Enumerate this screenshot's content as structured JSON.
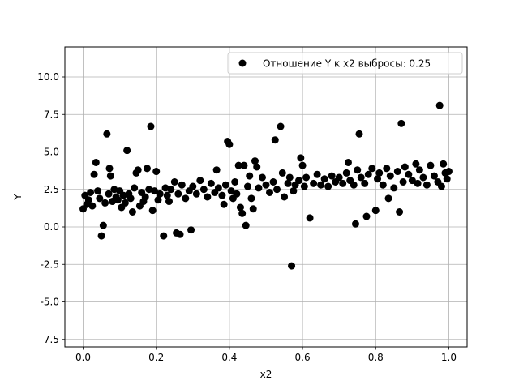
{
  "chart_data": {
    "type": "scatter",
    "xlabel": "x2",
    "ylabel": "Y",
    "xlim": [
      -0.05,
      1.05
    ],
    "ylim": [
      -8.0,
      12.0
    ],
    "x_ticks": [
      "0.0",
      "0.2",
      "0.4",
      "0.6",
      "0.8",
      "1.0"
    ],
    "y_ticks": [
      "-7.5",
      "-5.0",
      "-2.5",
      "0.0",
      "2.5",
      "5.0",
      "7.5",
      "10.0"
    ],
    "grid": true,
    "legend_position": "top-right",
    "series": [
      {
        "name": "Отношение Y к x2 выбросы: 0.25",
        "color": "#000000",
        "marker": "circle",
        "points": [
          [
            0.0,
            1.2
          ],
          [
            0.005,
            2.1
          ],
          [
            0.01,
            1.5
          ],
          [
            0.015,
            1.8
          ],
          [
            0.02,
            2.3
          ],
          [
            0.025,
            1.4
          ],
          [
            0.03,
            3.5
          ],
          [
            0.035,
            4.3
          ],
          [
            0.04,
            2.4
          ],
          [
            0.045,
            1.9
          ],
          [
            0.05,
            -0.6
          ],
          [
            0.055,
            0.1
          ],
          [
            0.06,
            1.6
          ],
          [
            0.065,
            6.2
          ],
          [
            0.07,
            2.2
          ],
          [
            0.072,
            3.9
          ],
          [
            0.075,
            3.4
          ],
          [
            0.08,
            1.7
          ],
          [
            0.085,
            2.5
          ],
          [
            0.09,
            2.0
          ],
          [
            0.095,
            1.8
          ],
          [
            0.1,
            2.4
          ],
          [
            0.105,
            1.3
          ],
          [
            0.11,
            2.1
          ],
          [
            0.115,
            1.6
          ],
          [
            0.12,
            5.1
          ],
          [
            0.125,
            2.2
          ],
          [
            0.13,
            1.9
          ],
          [
            0.135,
            1.0
          ],
          [
            0.14,
            2.6
          ],
          [
            0.145,
            3.6
          ],
          [
            0.15,
            3.8
          ],
          [
            0.155,
            1.4
          ],
          [
            0.16,
            2.3
          ],
          [
            0.165,
            1.7
          ],
          [
            0.17,
            2.0
          ],
          [
            0.175,
            3.9
          ],
          [
            0.18,
            2.5
          ],
          [
            0.185,
            6.7
          ],
          [
            0.19,
            1.1
          ],
          [
            0.195,
            2.4
          ],
          [
            0.2,
            3.7
          ],
          [
            0.205,
            1.8
          ],
          [
            0.21,
            2.2
          ],
          [
            0.22,
            -0.6
          ],
          [
            0.225,
            2.6
          ],
          [
            0.23,
            2.1
          ],
          [
            0.235,
            1.7
          ],
          [
            0.24,
            2.5
          ],
          [
            0.25,
            3.0
          ],
          [
            0.255,
            -0.4
          ],
          [
            0.26,
            2.2
          ],
          [
            0.265,
            -0.5
          ],
          [
            0.27,
            2.8
          ],
          [
            0.28,
            1.9
          ],
          [
            0.29,
            2.4
          ],
          [
            0.295,
            -0.2
          ],
          [
            0.3,
            2.7
          ],
          [
            0.31,
            2.2
          ],
          [
            0.32,
            3.1
          ],
          [
            0.33,
            2.5
          ],
          [
            0.34,
            2.0
          ],
          [
            0.35,
            2.9
          ],
          [
            0.36,
            2.3
          ],
          [
            0.365,
            3.8
          ],
          [
            0.37,
            2.6
          ],
          [
            0.38,
            2.1
          ],
          [
            0.385,
            1.5
          ],
          [
            0.39,
            2.8
          ],
          [
            0.395,
            5.7
          ],
          [
            0.4,
            5.5
          ],
          [
            0.405,
            2.4
          ],
          [
            0.41,
            1.9
          ],
          [
            0.415,
            3.0
          ],
          [
            0.42,
            2.2
          ],
          [
            0.425,
            4.1
          ],
          [
            0.43,
            1.3
          ],
          [
            0.435,
            0.9
          ],
          [
            0.44,
            4.1
          ],
          [
            0.445,
            0.1
          ],
          [
            0.45,
            2.7
          ],
          [
            0.455,
            3.4
          ],
          [
            0.46,
            1.9
          ],
          [
            0.465,
            1.2
          ],
          [
            0.47,
            4.4
          ],
          [
            0.475,
            4.0
          ],
          [
            0.48,
            2.6
          ],
          [
            0.49,
            3.3
          ],
          [
            0.5,
            2.8
          ],
          [
            0.51,
            2.3
          ],
          [
            0.52,
            3.0
          ],
          [
            0.525,
            5.8
          ],
          [
            0.53,
            2.5
          ],
          [
            0.54,
            6.7
          ],
          [
            0.545,
            3.6
          ],
          [
            0.55,
            2.0
          ],
          [
            0.56,
            2.9
          ],
          [
            0.565,
            3.3
          ],
          [
            0.57,
            -2.6
          ],
          [
            0.575,
            2.4
          ],
          [
            0.58,
            2.8
          ],
          [
            0.59,
            3.1
          ],
          [
            0.595,
            4.6
          ],
          [
            0.6,
            4.1
          ],
          [
            0.605,
            2.7
          ],
          [
            0.61,
            3.3
          ],
          [
            0.62,
            0.6
          ],
          [
            0.63,
            2.9
          ],
          [
            0.64,
            3.5
          ],
          [
            0.65,
            2.8
          ],
          [
            0.66,
            3.2
          ],
          [
            0.67,
            2.7
          ],
          [
            0.68,
            3.4
          ],
          [
            0.69,
            3.0
          ],
          [
            0.7,
            3.3
          ],
          [
            0.71,
            2.9
          ],
          [
            0.72,
            3.6
          ],
          [
            0.725,
            4.3
          ],
          [
            0.73,
            3.1
          ],
          [
            0.74,
            2.8
          ],
          [
            0.745,
            0.2
          ],
          [
            0.75,
            3.8
          ],
          [
            0.755,
            6.2
          ],
          [
            0.76,
            3.3
          ],
          [
            0.77,
            2.9
          ],
          [
            0.775,
            0.7
          ],
          [
            0.78,
            3.5
          ],
          [
            0.79,
            3.9
          ],
          [
            0.8,
            1.1
          ],
          [
            0.805,
            3.2
          ],
          [
            0.81,
            3.6
          ],
          [
            0.82,
            2.8
          ],
          [
            0.83,
            3.9
          ],
          [
            0.835,
            1.9
          ],
          [
            0.84,
            3.4
          ],
          [
            0.85,
            2.6
          ],
          [
            0.86,
            3.7
          ],
          [
            0.865,
            1.0
          ],
          [
            0.87,
            6.9
          ],
          [
            0.875,
            3.0
          ],
          [
            0.88,
            4.0
          ],
          [
            0.89,
            3.5
          ],
          [
            0.9,
            3.1
          ],
          [
            0.91,
            4.2
          ],
          [
            0.915,
            2.9
          ],
          [
            0.92,
            3.8
          ],
          [
            0.93,
            3.3
          ],
          [
            0.94,
            2.8
          ],
          [
            0.95,
            4.1
          ],
          [
            0.96,
            3.4
          ],
          [
            0.97,
            3.0
          ],
          [
            0.975,
            8.1
          ],
          [
            0.98,
            2.7
          ],
          [
            0.985,
            4.2
          ],
          [
            0.99,
            3.6
          ],
          [
            0.995,
            3.2
          ],
          [
            1.0,
            3.7
          ]
        ]
      }
    ]
  }
}
